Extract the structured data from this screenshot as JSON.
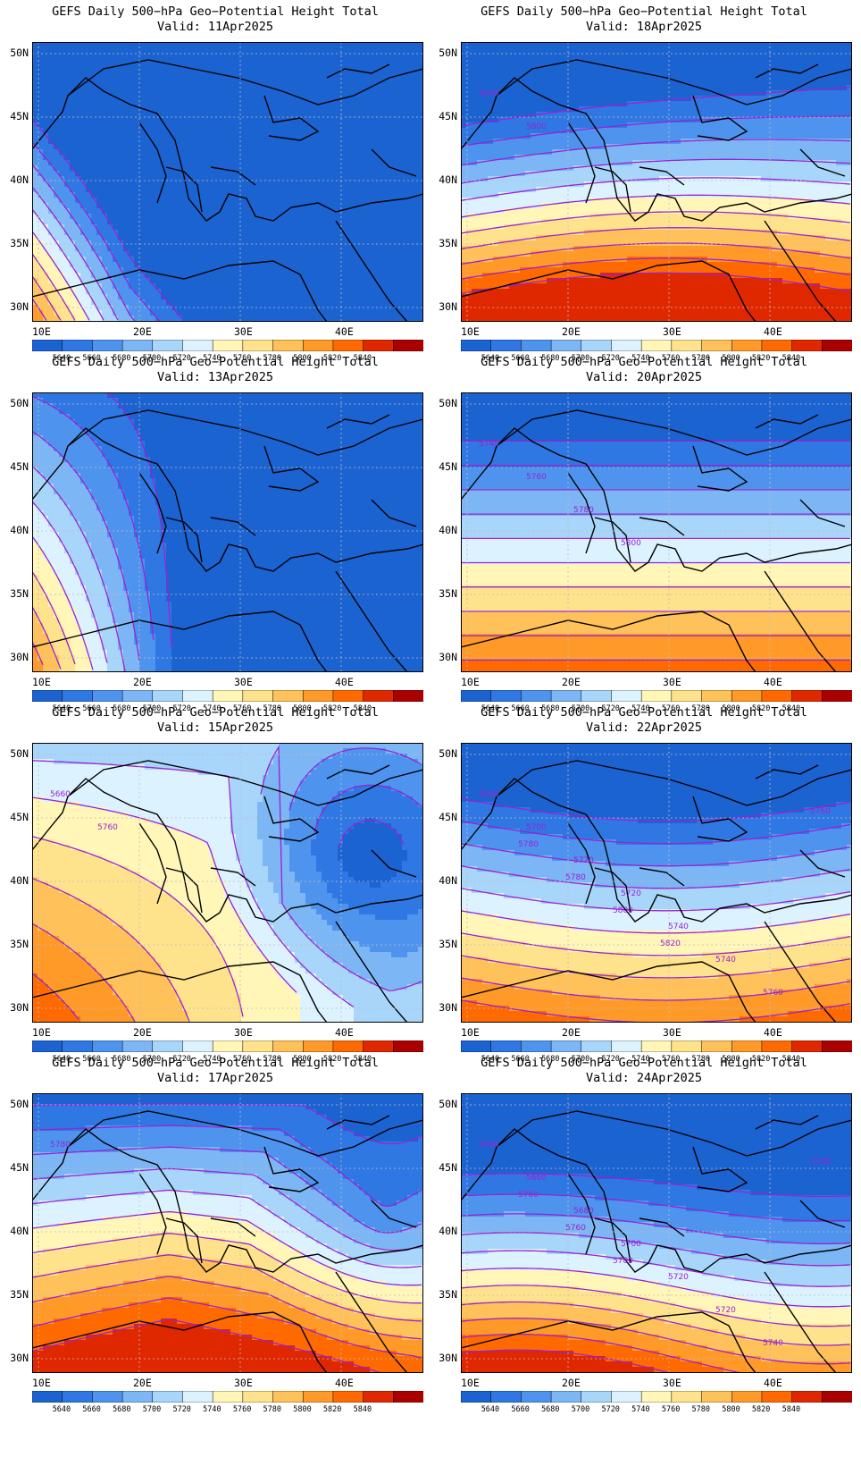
{
  "title_line1": "GEFS Daily 500−hPa Geo−Potential Height Total",
  "valid_prefix": "Valid:",
  "lat_labels": [
    "50N",
    "45N",
    "40N",
    "35N",
    "30N"
  ],
  "lon_labels": [
    "10E",
    "20E",
    "30E",
    "40E"
  ],
  "colorbar": {
    "labels": [
      "5640",
      "5660",
      "5680",
      "5700",
      "5720",
      "5740",
      "5760",
      "5780",
      "5800",
      "5820",
      "5840"
    ],
    "colors": [
      "#1c63d2",
      "#2f78e3",
      "#4e94ee",
      "#7cb6f4",
      "#a8d5fa",
      "#dcf3ff",
      "#fff6b8",
      "#ffe28c",
      "#ffc15a",
      "#ff9a28",
      "#ff6a00",
      "#e02800",
      "#aa0000"
    ]
  },
  "contour_color": "#9a22d2",
  "coast_color": "#000000",
  "panels": [
    {
      "date": "11Apr2025",
      "contour_labels": []
    },
    {
      "date": "18Apr2025",
      "contour_labels": [
        "5640",
        "5800"
      ]
    },
    {
      "date": "13Apr2025",
      "contour_labels": []
    },
    {
      "date": "20Apr2025",
      "contour_labels": [
        "5740",
        "5760",
        "5780",
        "5800"
      ]
    },
    {
      "date": "15Apr2025",
      "contour_labels": [
        "5660",
        "5760"
      ]
    },
    {
      "date": "22Apr2025",
      "contour_labels": [
        "5640",
        "5700",
        "5720",
        "5720",
        "5740",
        "5740",
        "5760",
        "5760",
        "5780",
        "5780",
        "5800",
        "5820"
      ]
    },
    {
      "date": "17Apr2025",
      "contour_labels": [
        "5780"
      ]
    },
    {
      "date": "24Apr2025",
      "contour_labels": [
        "5640",
        "5660",
        "5680",
        "5700",
        "5720",
        "5720",
        "5740",
        "5740",
        "5760",
        "5760",
        "5780"
      ]
    }
  ]
}
